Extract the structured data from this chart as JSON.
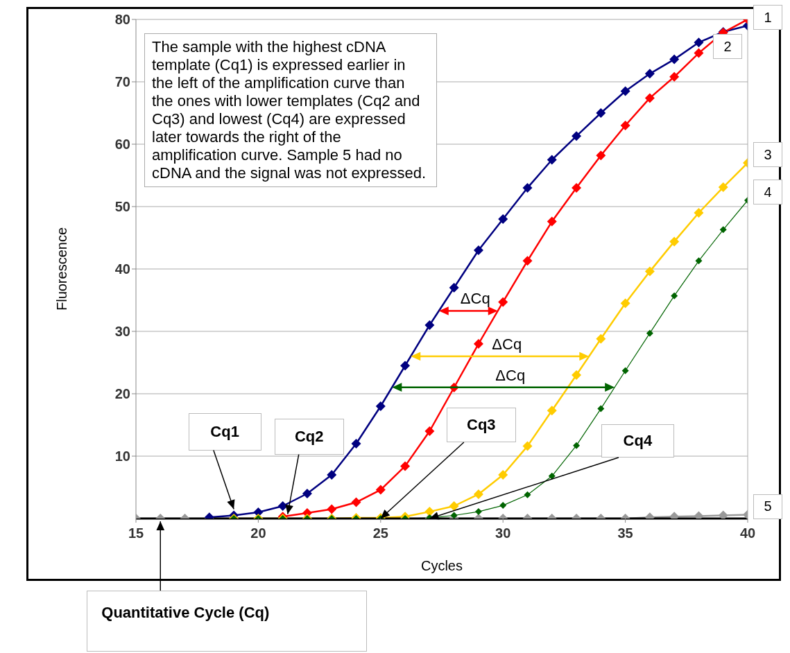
{
  "chart_data": {
    "type": "line",
    "xlabel": "Cycles",
    "ylabel": "Fluorescence",
    "x": [
      15,
      16,
      17,
      18,
      19,
      20,
      21,
      22,
      23,
      24,
      25,
      26,
      27,
      28,
      29,
      30,
      31,
      32,
      33,
      34,
      35,
      36,
      37,
      38,
      39,
      40
    ],
    "series": [
      {
        "name": "1",
        "color": "#000080",
        "values": [
          null,
          null,
          null,
          0.2,
          0.5,
          1,
          2,
          4,
          7,
          12,
          18,
          24.5,
          31,
          37,
          43,
          48,
          53,
          57.5,
          61.3,
          65,
          68.5,
          71.3,
          73.6,
          76.3,
          78,
          79
        ]
      },
      {
        "name": "2",
        "color": "#ff0000",
        "values": [
          null,
          null,
          null,
          null,
          null,
          null,
          0.3,
          0.9,
          1.5,
          2.6,
          4.6,
          8.4,
          14,
          21,
          28,
          34.7,
          41.3,
          47.6,
          53,
          58.2,
          63,
          67.4,
          70.8,
          74.6,
          77.9,
          80
        ]
      },
      {
        "name": "3",
        "color": "#ffcc00",
        "values": [
          null,
          null,
          null,
          null,
          0,
          0,
          0,
          0,
          0,
          0.1,
          0.1,
          0.3,
          1.1,
          2,
          3.9,
          7,
          11.6,
          17.3,
          23,
          28.8,
          34.5,
          39.6,
          44.4,
          49,
          53.1,
          57
        ]
      },
      {
        "name": "4",
        "color": "#006400",
        "values": [
          null,
          null,
          null,
          null,
          0,
          0,
          0,
          0,
          0,
          0,
          0,
          0,
          0.1,
          0.5,
          1.1,
          2.1,
          3.8,
          6.8,
          11.7,
          17.6,
          23.7,
          29.7,
          35.7,
          41.3,
          46.3,
          51
        ]
      },
      {
        "name": "5",
        "color": "#999999",
        "values": [
          0,
          0,
          0,
          0,
          0,
          0,
          0,
          0,
          0,
          0,
          0,
          0,
          0,
          0,
          0,
          0,
          0,
          0,
          0,
          0,
          0,
          0.2,
          0.3,
          0.4,
          0.5,
          0.6
        ]
      }
    ],
    "xlim": [
      15,
      40
    ],
    "xticks": [
      15,
      20,
      25,
      30,
      35,
      40
    ],
    "ylim": [
      0,
      80
    ],
    "yticks": [
      10,
      20,
      30,
      40,
      50,
      60,
      70,
      80
    ],
    "grid": "y",
    "marker": "diamond",
    "line_style": "solid",
    "annotations": [
      "The sample with the highest cDNA template (Cq1) is expressed earlier in the left of the amplification curve than the ones with lower templates (Cq2 and Cq3) and lowest (Cq4) are expressed later towards the right of the amplification curve. Sample 5 had no cDNA and the signal was not expressed.",
      {
        "text": "Cq1",
        "x": 19,
        "y": 1.5
      },
      {
        "text": "Cq2",
        "x": 21.2,
        "y": 0.7
      },
      {
        "text": "Cq3",
        "x": 25,
        "y": 0
      },
      {
        "text": "Cq4",
        "x": 27,
        "y": 0
      },
      "ΔCq",
      "ΔCq",
      "ΔCq",
      {
        "text": "Quantitative Cycle (Cq)",
        "x": 16,
        "y": 0
      }
    ]
  }
}
